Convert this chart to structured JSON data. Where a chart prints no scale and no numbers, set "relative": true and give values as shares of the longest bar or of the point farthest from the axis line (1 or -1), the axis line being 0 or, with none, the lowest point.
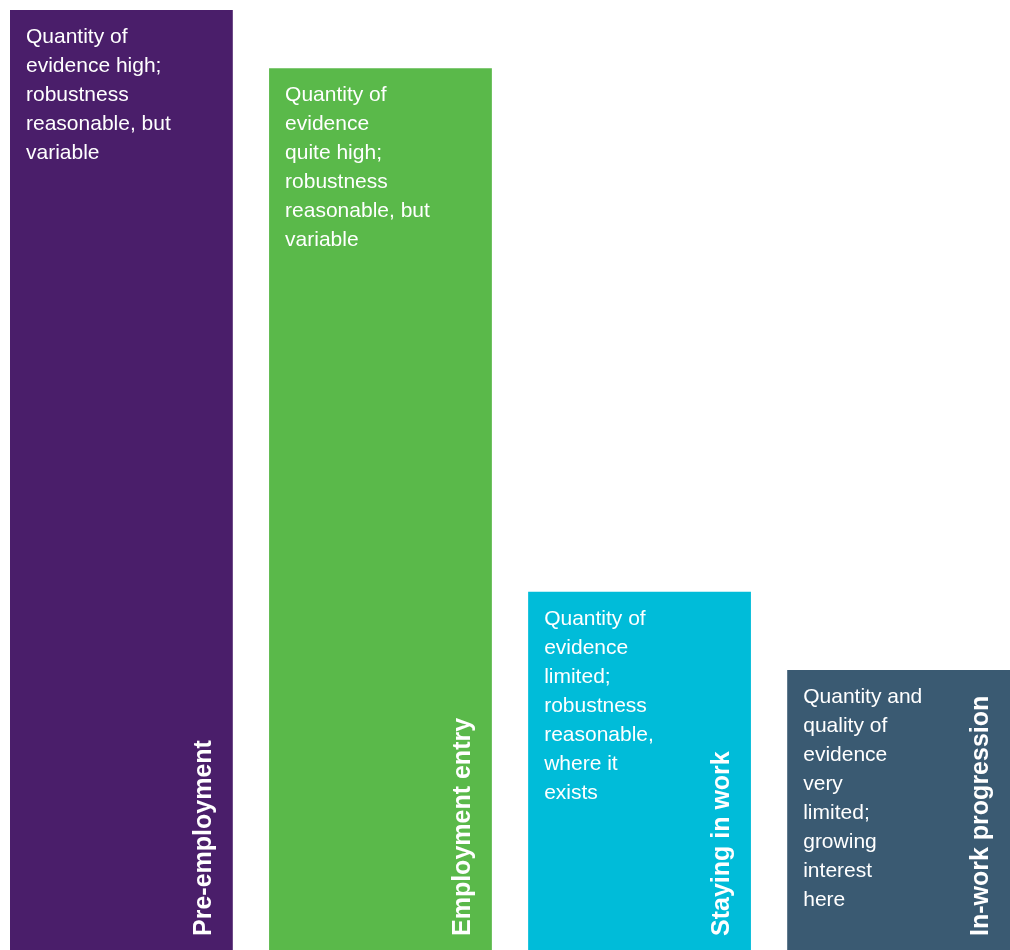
{
  "chart_data": {
    "type": "bar",
    "relative": true,
    "categories": [
      "Pre-employment",
      "Employment entry",
      "Staying in work",
      "In-work progression"
    ],
    "values": [
      1,
      0.938,
      0.381,
      0.298
    ],
    "colors": [
      "#4a1e6a",
      "#5ab94a",
      "#00bcd9",
      "#3a5a72"
    ],
    "annotations": [
      "Quantity of\nevidence high;\nrobustness\nreasonable, but\nvariable",
      "Quantity of\nevidence\nquite high;\nrobustness\nreasonable, but\nvariable",
      "Quantity of\nevidence\nlimited;\nrobustness\nreasonable,\nwhere it\nexists",
      "Quantity and\nquality of\nevidence\nvery\nlimited;\ngrowing\ninterest\nhere"
    ]
  }
}
